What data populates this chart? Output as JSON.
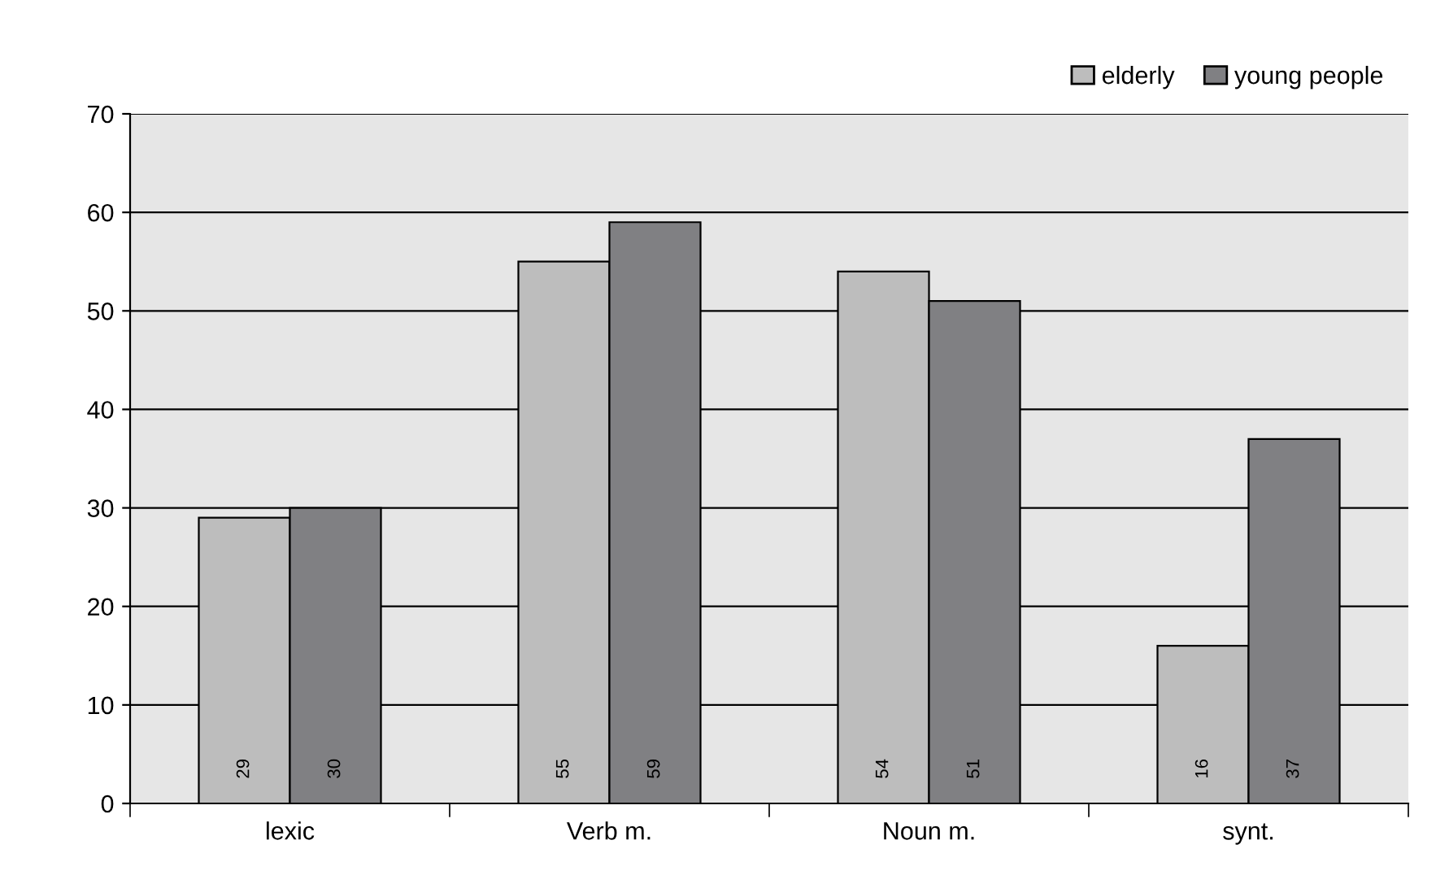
{
  "chart_data": {
    "type": "bar",
    "categories": [
      "lexic",
      "Verb m.",
      "Noun m.",
      "synt."
    ],
    "series": [
      {
        "name": "elderly",
        "color": "#bdbdbd",
        "values": [
          29,
          55,
          54,
          16
        ]
      },
      {
        "name": "young people",
        "color": "#808083",
        "values": [
          30,
          59,
          51,
          37
        ]
      }
    ],
    "ylim": [
      0,
      70
    ],
    "yticks": [
      0,
      10,
      20,
      30,
      40,
      50,
      60,
      70
    ],
    "grid": "y",
    "legend": "top right",
    "data_labels": true
  }
}
